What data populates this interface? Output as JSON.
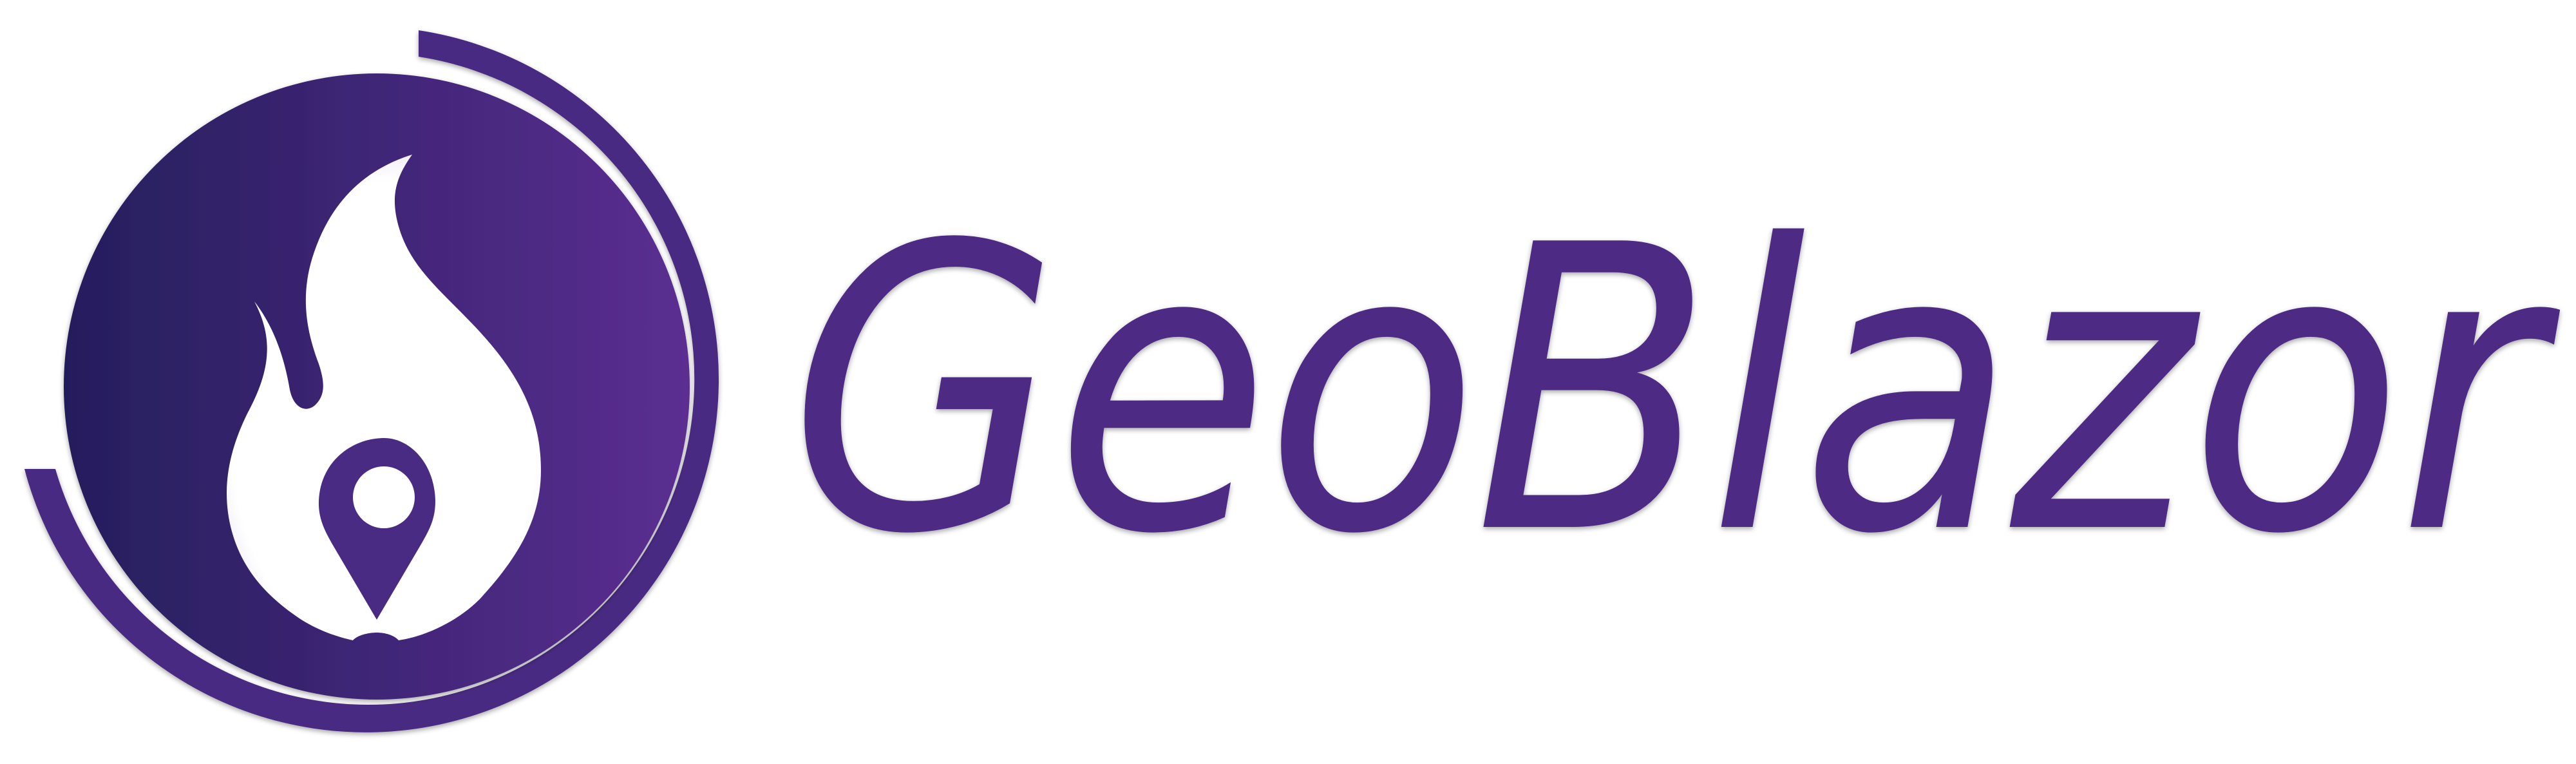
{
  "brand": {
    "name": "GeoBlazor",
    "colors": {
      "primary": "#4e2a84",
      "gradient_start": "#241e5c",
      "gradient_end": "#5b2e91",
      "ring": "#4a2a82",
      "background": "#ffffff"
    },
    "icons": {
      "emblem": "flame-map-pin-icon",
      "ring": "orbit-ring-icon"
    }
  }
}
